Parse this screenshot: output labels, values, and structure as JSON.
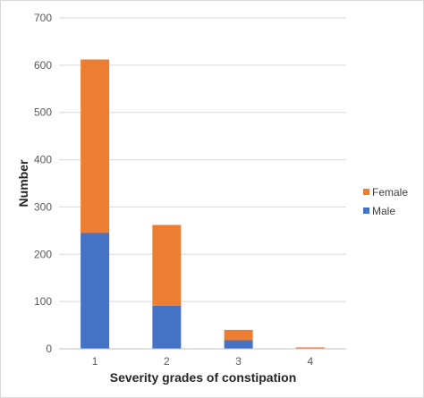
{
  "chart_data": {
    "type": "bar",
    "stacked": true,
    "categories": [
      "1",
      "2",
      "3",
      "4"
    ],
    "series": [
      {
        "name": "Male",
        "values": [
          245,
          91,
          18,
          0
        ],
        "color": "#4472c4"
      },
      {
        "name": "Female",
        "values": [
          367,
          171,
          22,
          3
        ],
        "color": "#ed7d31"
      }
    ],
    "xlabel": "Severity grades of constipation",
    "ylabel": "Number",
    "ylim": [
      0,
      700
    ],
    "yticks": [
      0,
      100,
      200,
      300,
      400,
      500,
      600,
      700
    ],
    "grid": "horizontal",
    "legend_position": "right",
    "legend_order": [
      "Female",
      "Male"
    ],
    "gridline_color": "#d9d9d9"
  }
}
